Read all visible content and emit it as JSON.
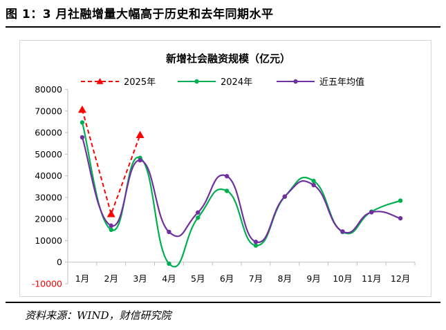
{
  "figure": {
    "title": "图 1：3 月社融增量大幅高于历史和去年同期水平",
    "source": "资料来源：WIND，财信研究院"
  },
  "chart_data": {
    "type": "line",
    "title": "新增社会融资规模（亿元）",
    "categories": [
      "1月",
      "2月",
      "3月",
      "4月",
      "5月",
      "6月",
      "7月",
      "8月",
      "9月",
      "10月",
      "11月",
      "12月"
    ],
    "ylim": [
      -10000,
      80000
    ],
    "yticks": [
      -10000,
      0,
      10000,
      20000,
      30000,
      40000,
      50000,
      60000,
      70000,
      80000
    ],
    "ytick_labels": [
      "-10000",
      "0",
      "10000",
      "20000",
      "30000",
      "40000",
      "50000",
      "60000",
      "70000",
      "80000"
    ],
    "grid": false,
    "legend_position": "top",
    "series": [
      {
        "name": "2025年",
        "color": "#ff0000",
        "style": "dashed",
        "marker": "triangle",
        "smooth": false,
        "values": [
          70600,
          22300,
          58900,
          null,
          null,
          null,
          null,
          null,
          null,
          null,
          null,
          null
        ]
      },
      {
        "name": "2024年",
        "color": "#00b050",
        "style": "solid",
        "marker": "circle",
        "smooth": true,
        "values": [
          64700,
          15000,
          48300,
          -700,
          20600,
          33000,
          7700,
          30300,
          37600,
          14000,
          23400,
          28500
        ]
      },
      {
        "name": "近五年均值",
        "color": "#7030a0",
        "style": "solid",
        "marker": "circle",
        "smooth": true,
        "values": [
          57800,
          16900,
          47200,
          14000,
          23000,
          39800,
          9400,
          30400,
          35700,
          14200,
          23100,
          20300
        ]
      }
    ]
  }
}
